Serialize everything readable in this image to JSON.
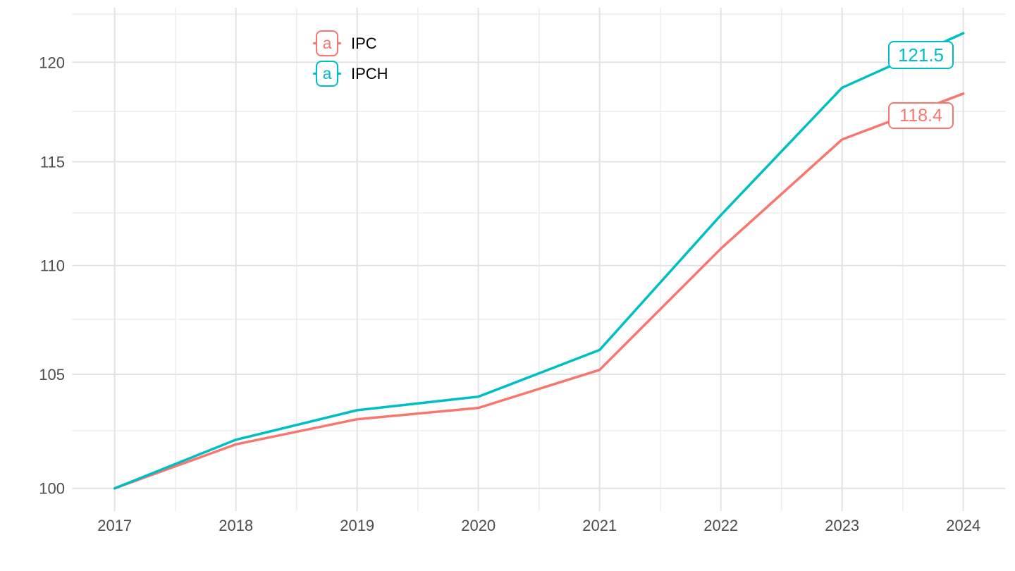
{
  "chart_data": {
    "type": "line",
    "title": "",
    "xlabel": "",
    "ylabel": "",
    "x": [
      2017,
      2018,
      2019,
      2020,
      2021,
      2022,
      2023,
      2024
    ],
    "x_tick_labels": [
      "2017",
      "2018",
      "2019",
      "2020",
      "2021",
      "2022",
      "2023",
      "2024"
    ],
    "y_tick_labels": [
      "100",
      "105",
      "110",
      "115",
      "120"
    ],
    "y_major_breaks": [
      100,
      105,
      110,
      115,
      120
    ],
    "y_minor_breaks": [
      102.5,
      107.5,
      112.5,
      117.5,
      122.5
    ],
    "x_minor_breaks": [
      2017.5,
      2018.5,
      2019.5,
      2020.5,
      2021.5,
      2022.5,
      2023.5
    ],
    "y_scale": "log10",
    "ylim_panel": [
      99.0,
      122.8
    ],
    "xlim_panel": [
      2016.65,
      2024.35
    ],
    "grid": true,
    "series": [
      {
        "name": "IPC",
        "color": "#F8766D",
        "values": [
          100,
          101.9,
          103.0,
          103.5,
          105.2,
          110.8,
          116.1,
          118.4
        ],
        "end_label": "118.4"
      },
      {
        "name": "IPCH",
        "color": "#00BFC4",
        "values": [
          100,
          102.1,
          103.4,
          104.0,
          106.1,
          112.4,
          118.7,
          121.5
        ],
        "end_label": "121.5"
      }
    ],
    "legend": {
      "position": "inset-top-left",
      "key_glyph": "a"
    },
    "colors": {
      "background": "#ffffff",
      "axis_text": "#4d4d4d",
      "grid_major": "#e3e3e3",
      "grid_minor": "#eeeeee",
      "legend_text": "#000000"
    }
  }
}
